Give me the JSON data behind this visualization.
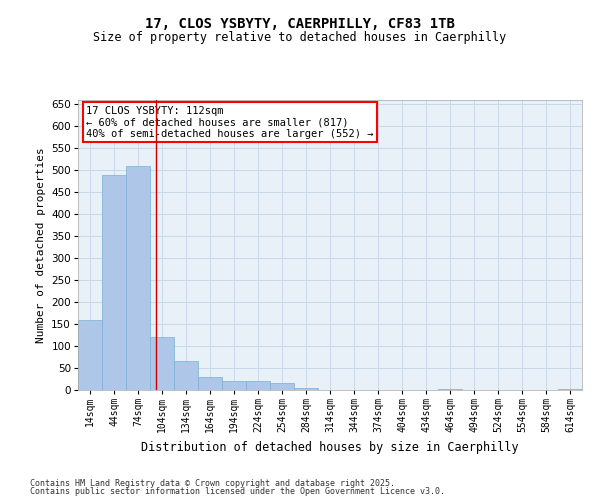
{
  "title1": "17, CLOS YSBYTY, CAERPHILLY, CF83 1TB",
  "title2": "Size of property relative to detached houses in Caerphilly",
  "xlabel": "Distribution of detached houses by size in Caerphilly",
  "ylabel": "Number of detached properties",
  "footnote1": "Contains HM Land Registry data © Crown copyright and database right 2025.",
  "footnote2": "Contains public sector information licensed under the Open Government Licence v3.0.",
  "annotation_line1": "17 CLOS YSBYTY: 112sqm",
  "annotation_line2": "← 60% of detached houses are smaller (817)",
  "annotation_line3": "40% of semi-detached houses are larger (552) →",
  "bar_color": "#aec6e8",
  "bar_edge_color": "#7aafd4",
  "grid_color": "#c8d8ea",
  "bg_color": "#e8f0f8",
  "vline_color": "#cc0000",
  "vline_x": 112,
  "bin_starts": [
    14,
    44,
    74,
    104,
    134,
    164,
    194,
    224,
    254,
    284,
    314,
    344,
    374,
    404,
    434,
    464,
    494,
    524,
    554,
    584,
    614
  ],
  "bin_width": 30,
  "bar_heights": [
    160,
    490,
    510,
    120,
    65,
    30,
    20,
    20,
    15,
    5,
    0,
    0,
    0,
    0,
    0,
    2,
    0,
    0,
    0,
    0,
    2
  ],
  "ylim": [
    0,
    660
  ],
  "yticks": [
    0,
    50,
    100,
    150,
    200,
    250,
    300,
    350,
    400,
    450,
    500,
    550,
    600,
    650
  ]
}
